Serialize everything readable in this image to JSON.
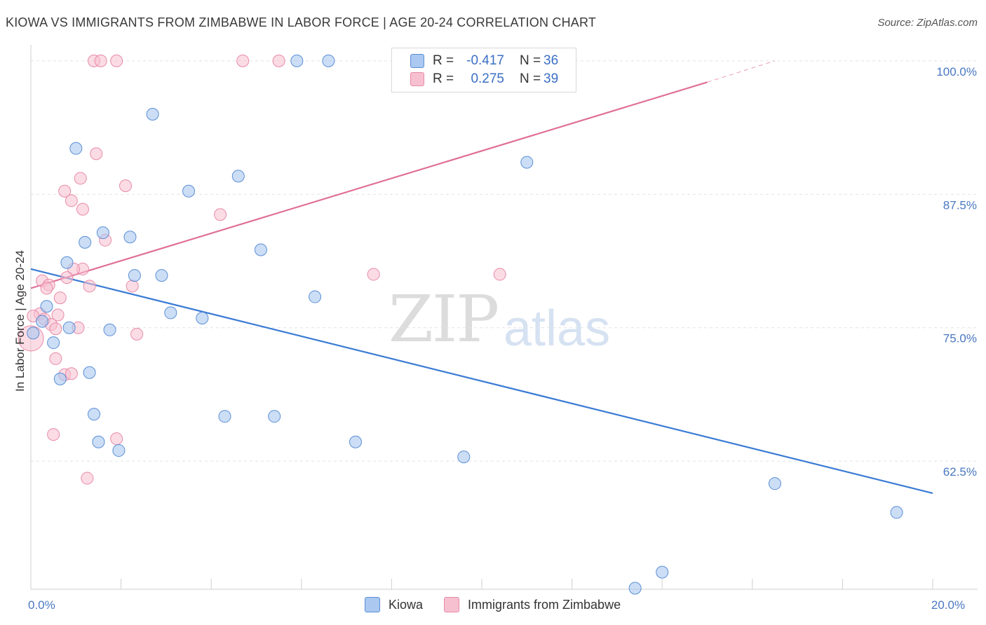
{
  "title": "KIOWA VS IMMIGRANTS FROM ZIMBABWE IN LABOR FORCE | AGE 20-24 CORRELATION CHART",
  "source": "Source: ZipAtlas.com",
  "watermark": {
    "zip": "ZIP",
    "atlas": "atlas"
  },
  "legend": {
    "r_label": "R =",
    "n_label": "N =",
    "series1": {
      "r": "-0.417",
      "n": "36"
    },
    "series2": {
      "r": "0.275",
      "n": "39"
    }
  },
  "bottom_legend": {
    "series1": "Kiowa",
    "series2": "Immigrants from Zimbabwe"
  },
  "colors": {
    "blue_fill": "#aac8f0",
    "blue_stroke": "#5a8fd6",
    "blue_line": "#3a7bd5",
    "pink_fill": "#f7c0d0",
    "pink_stroke": "#e88aa8",
    "pink_line": "#e07098"
  },
  "chart_data": {
    "type": "scatter",
    "title": "KIOWA VS IMMIGRANTS FROM ZIMBABWE IN LABOR FORCE | AGE 20-24 CORRELATION CHART",
    "xlabel": "",
    "ylabel": "In Labor Force | Age 20-24",
    "xlim": [
      0,
      20
    ],
    "ylim": [
      50.5,
      101.5
    ],
    "x_ticks": [
      {
        "v": 0,
        "label": "0.0%"
      },
      {
        "v": 20,
        "label": "20.0%"
      }
    ],
    "y_ticks": [
      {
        "v": 62.5,
        "label": "62.5%"
      },
      {
        "v": 75,
        "label": "75.0%"
      },
      {
        "v": 87.5,
        "label": "87.5%"
      },
      {
        "v": 100,
        "label": "100.0%"
      }
    ],
    "series": [
      {
        "name": "Kiowa",
        "R": -0.417,
        "N": 36,
        "trend": {
          "x0": 0,
          "y0": 80.5,
          "x1": 20,
          "y1": 59.5
        },
        "points": [
          [
            5.9,
            100.0
          ],
          [
            6.6,
            100.0
          ],
          [
            2.7,
            95.0
          ],
          [
            1.0,
            91.8
          ],
          [
            11.0,
            90.5
          ],
          [
            4.6,
            89.2
          ],
          [
            3.5,
            87.8
          ],
          [
            1.6,
            83.9
          ],
          [
            2.2,
            83.5
          ],
          [
            1.2,
            83.0
          ],
          [
            5.1,
            82.3
          ],
          [
            0.8,
            81.1
          ],
          [
            2.3,
            79.9
          ],
          [
            2.9,
            79.9
          ],
          [
            6.3,
            77.9
          ],
          [
            0.35,
            77.0
          ],
          [
            3.1,
            76.4
          ],
          [
            3.8,
            75.9
          ],
          [
            0.25,
            75.6
          ],
          [
            0.85,
            75.0
          ],
          [
            1.75,
            74.8
          ],
          [
            0.05,
            74.5
          ],
          [
            0.5,
            73.6
          ],
          [
            1.3,
            70.8
          ],
          [
            0.65,
            70.2
          ],
          [
            1.4,
            66.9
          ],
          [
            4.3,
            66.7
          ],
          [
            5.4,
            66.7
          ],
          [
            1.5,
            64.3
          ],
          [
            7.2,
            64.3
          ],
          [
            1.95,
            63.5
          ],
          [
            9.6,
            62.9
          ],
          [
            16.5,
            60.4
          ],
          [
            19.2,
            57.7
          ],
          [
            14.0,
            52.1
          ],
          [
            13.4,
            50.6
          ]
        ]
      },
      {
        "name": "Immigrants from Zimbabwe",
        "R": 0.275,
        "N": 39,
        "trend": {
          "x0": 0,
          "y0": 78.7,
          "x1": 15.0,
          "y1": 98.0
        },
        "trend_dashed": {
          "x0": 15.0,
          "y0": 98.0,
          "x1": 16.5,
          "y1": 100.0
        },
        "points": [
          [
            1.4,
            100.0
          ],
          [
            1.55,
            100.0
          ],
          [
            1.9,
            100.0
          ],
          [
            4.7,
            100.0
          ],
          [
            5.5,
            100.0
          ],
          [
            1.45,
            91.3
          ],
          [
            1.1,
            89.0
          ],
          [
            2.1,
            88.3
          ],
          [
            0.75,
            87.8
          ],
          [
            0.9,
            86.9
          ],
          [
            1.15,
            86.1
          ],
          [
            4.2,
            85.6
          ],
          [
            1.65,
            83.2
          ],
          [
            1.15,
            80.5
          ],
          [
            0.95,
            80.5
          ],
          [
            7.6,
            80.0
          ],
          [
            10.4,
            80.0
          ],
          [
            0.8,
            79.7
          ],
          [
            0.25,
            79.4
          ],
          [
            0.4,
            79.0
          ],
          [
            0.35,
            78.7
          ],
          [
            1.3,
            78.9
          ],
          [
            2.25,
            78.9
          ],
          [
            0.65,
            77.8
          ],
          [
            0.2,
            76.3
          ],
          [
            0.6,
            76.2
          ],
          [
            0.05,
            76.1
          ],
          [
            0.3,
            75.8
          ],
          [
            0.45,
            75.3
          ],
          [
            0.55,
            74.9
          ],
          [
            1.05,
            75.0
          ],
          [
            2.35,
            74.4
          ],
          [
            0.0,
            74.0
          ],
          [
            0.55,
            72.1
          ],
          [
            0.75,
            70.6
          ],
          [
            0.9,
            70.7
          ],
          [
            0.5,
            65.0
          ],
          [
            1.9,
            64.6
          ],
          [
            1.25,
            60.9
          ]
        ]
      }
    ]
  }
}
